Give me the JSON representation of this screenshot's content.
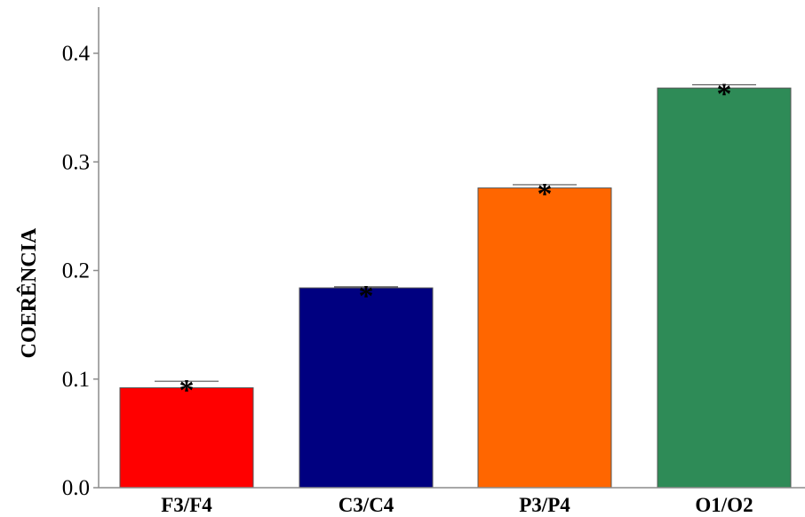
{
  "chart_data": {
    "type": "bar",
    "title": "",
    "xlabel": "",
    "ylabel": "COERÊNCIA",
    "ylim": [
      0.0,
      0.44
    ],
    "yticks": [
      "0.0",
      "0.1",
      "0.2",
      "0.3",
      "0.4"
    ],
    "ytick_values": [
      0.0,
      0.1,
      0.2,
      0.3,
      0.4
    ],
    "grid": false,
    "legend": "none",
    "categories": [
      "F3/F4",
      "C3/C4",
      "P3/P4",
      "O1/O2"
    ],
    "values": [
      0.092,
      0.184,
      0.276,
      0.368
    ],
    "errors": [
      0.006,
      0.001,
      0.003,
      0.003
    ],
    "significance": [
      "*",
      "*",
      "*",
      "*"
    ],
    "colors": [
      "#ff0000",
      "#000080",
      "#ff6600",
      "#2e8b57"
    ]
  }
}
